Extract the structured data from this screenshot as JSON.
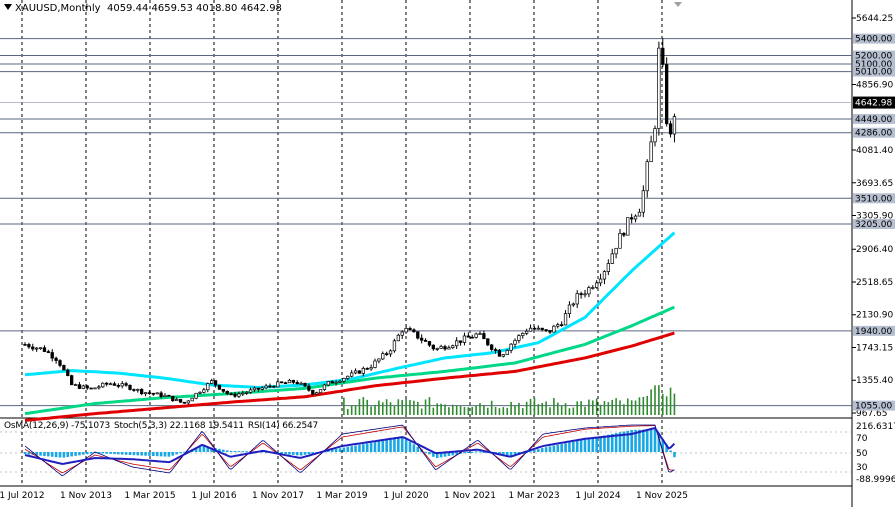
{
  "header": {
    "symbol": "XAUUSD,Monthly",
    "ohlc": "4059.44 4659.53 4018.80 4642.98"
  },
  "indicators": {
    "osma": "OsMA(12,26,9) -75.1073",
    "stoch": "Stoch(5,3,3) 22.1168 19.5411",
    "rsi": "RSI(14) 66.2547"
  },
  "colors": {
    "candle": "#000000",
    "ema_cyan": "#00e5ff",
    "ema_green": "#00d887",
    "ema_red": "#e00000",
    "volume": "#2e8b2e",
    "osma": "#19a8e6",
    "stoch_main": "#000080",
    "stoch_signal": "#c00000",
    "rsi": "#1f1fc0",
    "level_line": "#5a6680",
    "current_price_bg": "#000000"
  },
  "chart_data": {
    "type": "candlestick",
    "symbol": "XAUUSD",
    "timeframe": "Monthly",
    "x_ticks": [
      "1 Jul 2012",
      "1 Nov 2013",
      "1 Mar 2015",
      "1 Jul 2016",
      "1 Nov 2017",
      "1 Mar 2019",
      "1 Jul 2020",
      "1 Nov 2021",
      "1 Mar 2023",
      "1 Jul 2024",
      "1 Nov 2025"
    ],
    "y_ticks": [
      5644.25,
      4856.9,
      4081.4,
      3693.65,
      3305.9,
      2906.4,
      2518.65,
      2130.9,
      1743.15,
      1355.4,
      967.65
    ],
    "price_levels": [
      5400.0,
      5200.0,
      5100.0,
      5010.0,
      4449.0,
      4286.0,
      3510.0,
      3205.0,
      1940.0,
      1055.0
    ],
    "current_price": 4642.98,
    "price_points": [
      [
        2012.5,
        1780
      ],
      [
        2012.9,
        1720
      ],
      [
        2013.2,
        1600
      ],
      [
        2013.5,
        1300
      ],
      [
        2013.9,
        1250
      ],
      [
        2014.3,
        1320
      ],
      [
        2014.7,
        1280
      ],
      [
        2015.0,
        1220
      ],
      [
        2015.5,
        1170
      ],
      [
        2015.9,
        1080
      ],
      [
        2016.5,
        1340
      ],
      [
        2016.9,
        1170
      ],
      [
        2017.5,
        1250
      ],
      [
        2017.9,
        1310
      ],
      [
        2018.3,
        1340
      ],
      [
        2018.7,
        1200
      ],
      [
        2019.0,
        1320
      ],
      [
        2019.5,
        1420
      ],
      [
        2019.9,
        1520
      ],
      [
        2020.3,
        1700
      ],
      [
        2020.6,
        1970
      ],
      [
        2020.9,
        1880
      ],
      [
        2021.3,
        1720
      ],
      [
        2021.7,
        1800
      ],
      [
        2022.2,
        1900
      ],
      [
        2022.7,
        1650
      ],
      [
        2022.9,
        1780
      ],
      [
        2023.3,
        1980
      ],
      [
        2023.7,
        1920
      ],
      [
        2024.0,
        2050
      ],
      [
        2024.3,
        2330
      ],
      [
        2024.6,
        2450
      ],
      [
        2024.9,
        2650
      ],
      [
        2025.2,
        3000
      ],
      [
        2025.5,
        3300
      ],
      [
        2025.7,
        3420
      ],
      [
        2025.9,
        4100
      ],
      [
        2026.0,
        4400
      ],
      [
        2026.1,
        5400
      ],
      [
        2026.2,
        4800
      ],
      [
        2026.3,
        4100
      ],
      [
        2026.45,
        4642.98
      ]
    ],
    "series": [
      {
        "name": "",
        "color": "cyan",
        "points": [
          [
            2012.5,
            1420
          ],
          [
            2013.5,
            1470
          ],
          [
            2014.5,
            1440
          ],
          [
            2015.5,
            1380
          ],
          [
            2016.5,
            1300
          ],
          [
            2017.5,
            1270
          ],
          [
            2018.5,
            1300
          ],
          [
            2019.5,
            1370
          ],
          [
            2020.5,
            1500
          ],
          [
            2021.5,
            1620
          ],
          [
            2022.5,
            1680
          ],
          [
            2023.5,
            1800
          ],
          [
            2024.5,
            2100
          ],
          [
            2025.5,
            2650
          ],
          [
            2026.45,
            3120
          ]
        ]
      },
      {
        "name": "",
        "color": "green",
        "points": [
          [
            2012.5,
            960
          ],
          [
            2014.0,
            1080
          ],
          [
            2015.5,
            1150
          ],
          [
            2017.0,
            1200
          ],
          [
            2018.5,
            1260
          ],
          [
            2020.0,
            1380
          ],
          [
            2021.5,
            1460
          ],
          [
            2023.0,
            1560
          ],
          [
            2024.5,
            1780
          ],
          [
            2025.5,
            2000
          ],
          [
            2026.45,
            2230
          ]
        ]
      },
      {
        "name": "",
        "color": "red",
        "points": [
          [
            2012.5,
            880
          ],
          [
            2014.0,
            960
          ],
          [
            2015.5,
            1030
          ],
          [
            2017.0,
            1100
          ],
          [
            2018.5,
            1160
          ],
          [
            2020.0,
            1290
          ],
          [
            2021.5,
            1380
          ],
          [
            2023.0,
            1460
          ],
          [
            2024.5,
            1620
          ],
          [
            2025.5,
            1760
          ],
          [
            2026.45,
            1920
          ]
        ]
      }
    ],
    "volume_start": 2019.3,
    "indicator_panel": {
      "levels": [
        "216.6317",
        "70",
        "50",
        "30",
        "-88.9996"
      ],
      "osma_value": -75.1073,
      "stoch_main": 22.1168,
      "stoch_signal": 19.5411,
      "rsi": 66.2547,
      "osma": [
        [
          2012.5,
          -20
        ],
        [
          2013.3,
          -55
        ],
        [
          2014.0,
          -10
        ],
        [
          2014.8,
          -30
        ],
        [
          2015.6,
          -45
        ],
        [
          2016.3,
          60
        ],
        [
          2016.9,
          10
        ],
        [
          2017.6,
          5
        ],
        [
          2018.4,
          -35
        ],
        [
          2019.3,
          40
        ],
        [
          2020.6,
          140
        ],
        [
          2021.3,
          -60
        ],
        [
          2022.2,
          10
        ],
        [
          2022.9,
          -50
        ],
        [
          2023.6,
          40
        ],
        [
          2024.5,
          120
        ],
        [
          2025.5,
          210
        ],
        [
          2026.0,
          216
        ],
        [
          2026.3,
          40
        ],
        [
          2026.45,
          -75
        ]
      ],
      "rsi_points": [
        [
          2012.5,
          45
        ],
        [
          2013.3,
          30
        ],
        [
          2014.0,
          40
        ],
        [
          2014.8,
          38
        ],
        [
          2015.6,
          33
        ],
        [
          2016.3,
          62
        ],
        [
          2016.9,
          42
        ],
        [
          2017.6,
          52
        ],
        [
          2018.4,
          40
        ],
        [
          2019.3,
          60
        ],
        [
          2020.6,
          75
        ],
        [
          2021.3,
          48
        ],
        [
          2022.2,
          54
        ],
        [
          2022.9,
          42
        ],
        [
          2023.6,
          60
        ],
        [
          2024.5,
          72
        ],
        [
          2025.5,
          80
        ],
        [
          2026.0,
          90
        ],
        [
          2026.3,
          55
        ],
        [
          2026.45,
          66.25
        ]
      ],
      "stoch_main_points": [
        [
          2012.5,
          60
        ],
        [
          2013.3,
          10
        ],
        [
          2014.0,
          50
        ],
        [
          2014.8,
          25
        ],
        [
          2015.6,
          15
        ],
        [
          2016.3,
          85
        ],
        [
          2016.9,
          20
        ],
        [
          2017.6,
          70
        ],
        [
          2018.4,
          15
        ],
        [
          2019.3,
          80
        ],
        [
          2020.6,
          95
        ],
        [
          2021.3,
          20
        ],
        [
          2022.2,
          70
        ],
        [
          2022.9,
          20
        ],
        [
          2023.6,
          80
        ],
        [
          2024.5,
          90
        ],
        [
          2025.5,
          95
        ],
        [
          2026.0,
          95
        ],
        [
          2026.3,
          15
        ],
        [
          2026.45,
          22.12
        ]
      ],
      "stoch_signal_points": [
        [
          2012.5,
          55
        ],
        [
          2013.3,
          15
        ],
        [
          2014.0,
          45
        ],
        [
          2014.8,
          30
        ],
        [
          2015.6,
          20
        ],
        [
          2016.3,
          80
        ],
        [
          2016.9,
          25
        ],
        [
          2017.6,
          65
        ],
        [
          2018.4,
          20
        ],
        [
          2019.3,
          75
        ],
        [
          2020.6,
          92
        ],
        [
          2021.3,
          25
        ],
        [
          2022.2,
          65
        ],
        [
          2022.9,
          25
        ],
        [
          2023.6,
          75
        ],
        [
          2024.5,
          88
        ],
        [
          2025.5,
          93
        ],
        [
          2026.0,
          94
        ],
        [
          2026.3,
          20
        ],
        [
          2026.45,
          19.54
        ]
      ]
    }
  }
}
